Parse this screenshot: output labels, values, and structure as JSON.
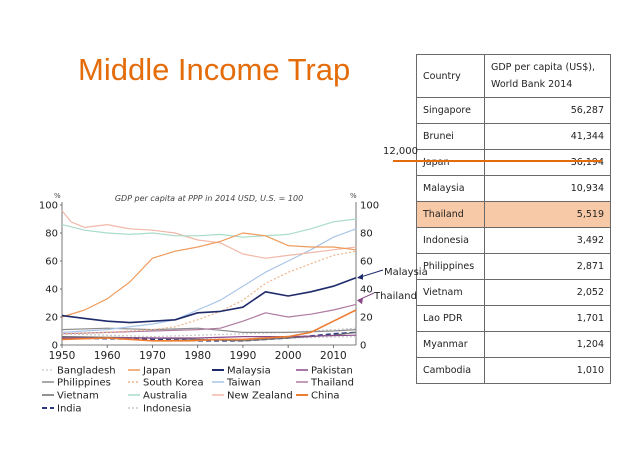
{
  "slide": {
    "title": "Middle Income Trap"
  },
  "table": {
    "headers": [
      "Country",
      "GDP per capita (US$), World Bank 2014"
    ],
    "rows": [
      {
        "country": "Singapore",
        "value": "56,287",
        "highlight": false
      },
      {
        "country": "Brunei",
        "value": "41,344",
        "highlight": false
      },
      {
        "country": "Japan",
        "value": "36,194",
        "highlight": false
      },
      {
        "country": "Malaysia",
        "value": "10,934",
        "highlight": false
      },
      {
        "country": "Thailand",
        "value": "5,519",
        "highlight": true
      },
      {
        "country": "Indonesia",
        "value": "3,492",
        "highlight": false
      },
      {
        "country": "Philippines",
        "value": "2,871",
        "highlight": false
      },
      {
        "country": "Vietnam",
        "value": "2,052",
        "highlight": false
      },
      {
        "country": "Lao PDR",
        "value": "1,701",
        "highlight": false
      },
      {
        "country": "Myanmar",
        "value": "1,204",
        "highlight": false
      },
      {
        "country": "Cambodia",
        "value": "1,010",
        "highlight": false
      }
    ],
    "highlight_color": "#f8c9a6"
  },
  "threshold": {
    "label": "12,000",
    "color": "#e46c0a"
  },
  "callouts": {
    "malaysia": "Malaysia",
    "thailand": "Thailand"
  },
  "chart_data": {
    "type": "line",
    "title": "GDP per capita at PPP in 2014 USD, U.S. = 100",
    "y_unit_left": "%",
    "y_unit_right": "%",
    "xlim": [
      1950,
      2015
    ],
    "ylim": [
      0,
      100
    ],
    "x_ticks": [
      1950,
      1960,
      1970,
      1980,
      1990,
      2000,
      2010
    ],
    "y_ticks": [
      0,
      20,
      40,
      60,
      80,
      100
    ],
    "grid": false,
    "legend_position": "bottom",
    "series": [
      {
        "name": "Bangladesh",
        "color": "#d0d0d0",
        "dash": "2,2",
        "x": [
          1950,
          1970,
          1990,
          2000,
          2015
        ],
        "y": [
          6,
          5,
          4,
          5,
          6
        ]
      },
      {
        "name": "Japan",
        "color": "#ef9b5c",
        "dash": "",
        "x": [
          1950,
          1955,
          1960,
          1965,
          1970,
          1975,
          1980,
          1985,
          1990,
          1995,
          2000,
          2005,
          2010,
          2015
        ],
        "y": [
          20,
          25,
          33,
          45,
          62,
          67,
          70,
          74,
          80,
          78,
          71,
          70,
          70,
          68
        ]
      },
      {
        "name": "Malaysia",
        "color": "#1f2a6b",
        "dash": "",
        "x": [
          1950,
          1955,
          1960,
          1965,
          1970,
          1975,
          1980,
          1985,
          1990,
          1995,
          2000,
          2005,
          2010,
          2015
        ],
        "y": [
          21,
          19,
          17,
          16,
          17,
          18,
          23,
          24,
          27,
          38,
          35,
          38,
          42,
          48
        ]
      },
      {
        "name": "Pakistan",
        "color": "#8a4a8a",
        "dash": "",
        "x": [
          1950,
          1970,
          1980,
          1990,
          2000,
          2015
        ],
        "y": [
          5,
          5,
          5,
          6,
          6,
          7
        ]
      },
      {
        "name": "Philippines",
        "color": "#8c8c8c",
        "dash": "",
        "x": [
          1950,
          1960,
          1970,
          1980,
          1990,
          2000,
          2010,
          2015
        ],
        "y": [
          11,
          12,
          11,
          12,
          9,
          9,
          10,
          11
        ]
      },
      {
        "name": "South Korea",
        "color": "#f0b48a",
        "dash": "2,2",
        "x": [
          1950,
          1960,
          1970,
          1975,
          1980,
          1985,
          1990,
          1995,
          2000,
          2005,
          2010,
          2015
        ],
        "y": [
          8,
          9,
          11,
          13,
          18,
          24,
          32,
          44,
          52,
          58,
          64,
          67
        ]
      },
      {
        "name": "Taiwan",
        "color": "#a9c6e8",
        "dash": "",
        "x": [
          1950,
          1960,
          1970,
          1975,
          1980,
          1985,
          1990,
          1995,
          2000,
          2005,
          2010,
          2015
        ],
        "y": [
          9,
          11,
          15,
          18,
          25,
          32,
          42,
          52,
          60,
          68,
          77,
          83
        ]
      },
      {
        "name": "Thailand",
        "color": "#b07aa1",
        "dash": "",
        "x": [
          1950,
          1960,
          1970,
          1980,
          1985,
          1990,
          1995,
          2000,
          2005,
          2010,
          2015
        ],
        "y": [
          8,
          9,
          10,
          11,
          12,
          17,
          23,
          20,
          22,
          25,
          29
        ]
      },
      {
        "name": "Vietnam",
        "color": "#6e6e6e",
        "dash": "",
        "x": [
          1950,
          1970,
          1980,
          1990,
          2000,
          2010,
          2015
        ],
        "y": [
          6,
          5,
          4,
          3,
          5,
          7,
          9
        ]
      },
      {
        "name": "Australia",
        "color": "#a8dcc8",
        "dash": "",
        "x": [
          1950,
          1955,
          1960,
          1965,
          1970,
          1975,
          1980,
          1985,
          1990,
          1995,
          2000,
          2005,
          2010,
          2015
        ],
        "y": [
          86,
          82,
          80,
          79,
          80,
          78,
          78,
          79,
          77,
          78,
          79,
          83,
          88,
          90
        ]
      },
      {
        "name": "New Zealand",
        "color": "#f2b8a8",
        "dash": "",
        "x": [
          1950,
          1952,
          1955,
          1960,
          1965,
          1970,
          1975,
          1980,
          1985,
          1990,
          1995,
          2000,
          2005,
          2010,
          2015
        ],
        "y": [
          96,
          88,
          84,
          86,
          83,
          82,
          80,
          75,
          73,
          65,
          62,
          64,
          66,
          68,
          70
        ]
      },
      {
        "name": "China",
        "color": "#ed7d31",
        "dash": "",
        "x": [
          1950,
          1960,
          1970,
          1978,
          1985,
          1990,
          1995,
          2000,
          2005,
          2010,
          2015
        ],
        "y": [
          4,
          5,
          3,
          3,
          4,
          4,
          5,
          6,
          9,
          17,
          25
        ]
      },
      {
        "name": "India",
        "color": "#2e3a87",
        "dash": "5,3",
        "x": [
          1950,
          1970,
          1980,
          1990,
          2000,
          2010,
          2015
        ],
        "y": [
          5,
          4,
          3,
          3,
          5,
          8,
          9
        ]
      },
      {
        "name": "Indonesia",
        "color": "#c8c8c8",
        "dash": "2,2",
        "x": [
          1950,
          1960,
          1970,
          1980,
          1990,
          2000,
          2010,
          2015
        ],
        "y": [
          8,
          7,
          6,
          7,
          8,
          9,
          11,
          12
        ]
      }
    ]
  }
}
